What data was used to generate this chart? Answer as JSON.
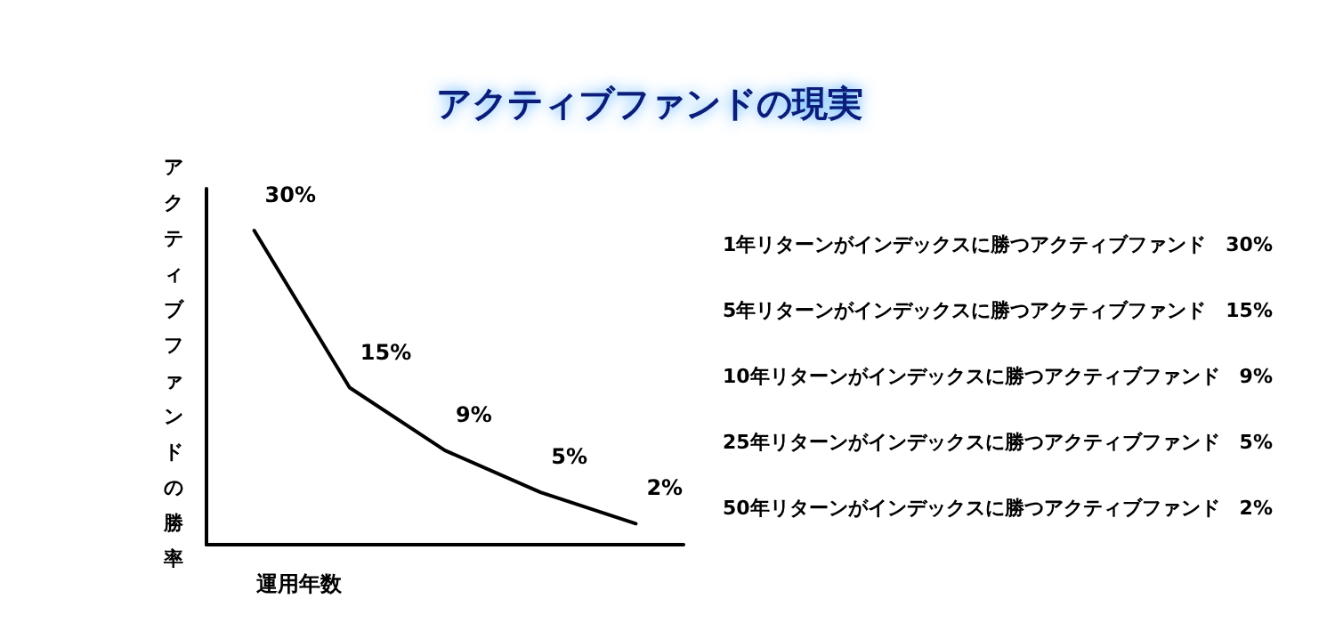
{
  "chart_data": {
    "type": "line",
    "title": "アクティブファンドの現実",
    "xlabel": "運用年数",
    "ylabel": "アクティブファンドの勝率",
    "categories": [
      null,
      null,
      null,
      null,
      null
    ],
    "values": [
      30,
      15,
      9,
      5,
      2
    ],
    "value_labels": [
      "30%",
      "15%",
      "9%",
      "5%",
      "2%"
    ],
    "color": "#000000",
    "marker": "none",
    "grid": false,
    "annotations": [
      "1年リターンがインデックスに勝つアクティブファンド　30%",
      "5年リターンがインデックスに勝つアクティブファンド　15%",
      "10年リターンがインデックスに勝つアクティブファンド　9%",
      "25年リターンがインデックスに勝つアクティブファンド　5%",
      "50年リターンがインデックスに勝つアクティブファンド　2%"
    ]
  }
}
